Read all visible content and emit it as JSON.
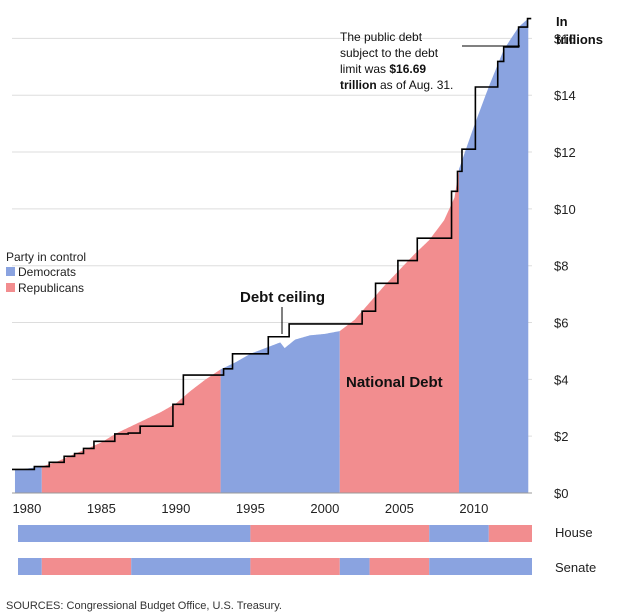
{
  "colors": {
    "democrats": "#8aa3e0",
    "republicans": "#f28d8f",
    "ceiling": "#000000",
    "grid": "#dddddd"
  },
  "legend": {
    "title": "Party in control",
    "democrats_label": "Democrats",
    "republicans_label": "Republicans"
  },
  "labels": {
    "unit_line1": "In",
    "unit_line2": "trillions",
    "debt_ceiling": "Debt ceiling",
    "national_debt": "National Debt",
    "house": "House",
    "senate": "Senate"
  },
  "note": {
    "line1": "The public debt",
    "line2": "subject to the debt",
    "line3_pre": "limit was ",
    "line3_bold": "$16.69",
    "line4_bold": "trillion",
    "line4_post": " as of Aug. 31."
  },
  "source": "SOURCES: Congressional Budget Office, U.S. Treasury.",
  "chart_data": {
    "type": "area",
    "xlim": [
      1979,
      2013.9
    ],
    "ylim": [
      0,
      17
    ],
    "x_ticks": [
      1980,
      1985,
      1990,
      1995,
      2000,
      2005,
      2010
    ],
    "y_ticks": [
      {
        "value": 0,
        "label": "$0"
      },
      {
        "value": 2,
        "label": "$2"
      },
      {
        "value": 4,
        "label": "$4"
      },
      {
        "value": 6,
        "label": "$6"
      },
      {
        "value": 8,
        "label": "$8"
      },
      {
        "value": 10,
        "label": "$10"
      },
      {
        "value": 12,
        "label": "$12"
      },
      {
        "value": 14,
        "label": "$14"
      },
      {
        "value": 16,
        "label": "$16"
      }
    ],
    "national_debt": {
      "name": "National Debt",
      "points": [
        [
          1979.2,
          0.81
        ],
        [
          1980,
          0.86
        ],
        [
          1981,
          0.93
        ],
        [
          1982,
          1.1
        ],
        [
          1983,
          1.33
        ],
        [
          1984,
          1.55
        ],
        [
          1985,
          1.78
        ],
        [
          1986,
          2.1
        ],
        [
          1987,
          2.35
        ],
        [
          1988,
          2.6
        ],
        [
          1989,
          2.85
        ],
        [
          1990,
          3.15
        ],
        [
          1991,
          3.6
        ],
        [
          1992,
          4.0
        ],
        [
          1993,
          4.35
        ],
        [
          1994,
          4.6
        ],
        [
          1995,
          4.9
        ],
        [
          1996,
          5.1
        ],
        [
          1997,
          5.3
        ],
        [
          1997.3,
          5.1
        ],
        [
          1998,
          5.4
        ],
        [
          1999,
          5.55
        ],
        [
          2000,
          5.6
        ],
        [
          2001,
          5.7
        ],
        [
          2002,
          6.1
        ],
        [
          2003,
          6.7
        ],
        [
          2004,
          7.3
        ],
        [
          2005,
          7.85
        ],
        [
          2006,
          8.4
        ],
        [
          2007,
          8.9
        ],
        [
          2008,
          9.6
        ],
        [
          2008.7,
          10.4
        ],
        [
          2009,
          11.4
        ],
        [
          2010,
          12.9
        ],
        [
          2011,
          14.3
        ],
        [
          2012,
          15.6
        ],
        [
          2013,
          16.4
        ],
        [
          2013.65,
          16.7
        ]
      ]
    },
    "debt_ceiling": {
      "name": "Debt ceiling",
      "steps": [
        [
          1979.0,
          0.83
        ],
        [
          1980.5,
          0.93
        ],
        [
          1981.5,
          1.08
        ],
        [
          1982.5,
          1.29
        ],
        [
          1983.2,
          1.39
        ],
        [
          1983.8,
          1.57
        ],
        [
          1984.5,
          1.82
        ],
        [
          1985.9,
          2.08
        ],
        [
          1986.8,
          2.11
        ],
        [
          1987.6,
          2.35
        ],
        [
          1989.8,
          3.12
        ],
        [
          1990.5,
          4.15
        ],
        [
          1993.2,
          4.37
        ],
        [
          1993.8,
          4.9
        ],
        [
          1996.2,
          5.5
        ],
        [
          1997.6,
          5.95
        ],
        [
          2002.5,
          6.4
        ],
        [
          2003.4,
          7.38
        ],
        [
          2004.9,
          8.18
        ],
        [
          2006.2,
          8.97
        ],
        [
          2008.5,
          10.62
        ],
        [
          2008.9,
          11.32
        ],
        [
          2009.2,
          12.1
        ],
        [
          2010.1,
          14.29
        ],
        [
          2011.6,
          15.19
        ],
        [
          2012.0,
          15.7
        ],
        [
          2013.0,
          16.4
        ],
        [
          2013.6,
          16.7
        ]
      ],
      "end_x": 2013.85
    },
    "party_periods": [
      {
        "start": 1979.2,
        "end": 1981.0,
        "party": "democrats"
      },
      {
        "start": 1981.0,
        "end": 1993.0,
        "party": "republicans"
      },
      {
        "start": 1993.0,
        "end": 2001.0,
        "party": "democrats"
      },
      {
        "start": 2001.0,
        "end": 2009.0,
        "party": "republicans"
      },
      {
        "start": 2009.0,
        "end": 2013.65,
        "party": "democrats"
      }
    ],
    "house_control": [
      {
        "start": 1979,
        "end": 1995,
        "party": "democrats"
      },
      {
        "start": 1995,
        "end": 2007,
        "party": "republicans"
      },
      {
        "start": 2007,
        "end": 2011,
        "party": "democrats"
      },
      {
        "start": 2011,
        "end": 2014,
        "party": "republicans"
      }
    ],
    "senate_control": [
      {
        "start": 1979,
        "end": 1981,
        "party": "democrats"
      },
      {
        "start": 1981,
        "end": 1987,
        "party": "republicans"
      },
      {
        "start": 1987,
        "end": 1995,
        "party": "democrats"
      },
      {
        "start": 1995,
        "end": 2001,
        "party": "republicans"
      },
      {
        "start": 2001,
        "end": 2003,
        "party": "democrats"
      },
      {
        "start": 2003,
        "end": 2007,
        "party": "republicans"
      },
      {
        "start": 2007,
        "end": 2014,
        "party": "democrats"
      }
    ],
    "grid": true,
    "legend_position": "left"
  }
}
